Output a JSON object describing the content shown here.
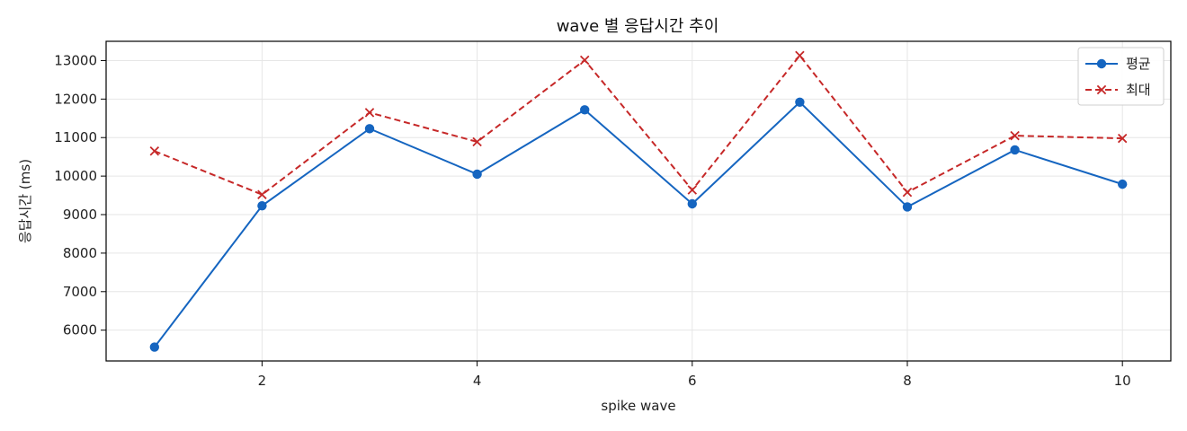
{
  "chart_data": {
    "type": "line",
    "title": "wave 별 응답시간 추이",
    "xlabel": "spike wave",
    "ylabel": "응답시간 (ms)",
    "x": [
      1,
      2,
      3,
      4,
      5,
      6,
      7,
      8,
      9,
      10
    ],
    "xlim": [
      0.55,
      10.45
    ],
    "ylim": [
      5200,
      13500
    ],
    "xticks": [
      2,
      4,
      6,
      8,
      10
    ],
    "yticks": [
      6000,
      7000,
      8000,
      9000,
      10000,
      11000,
      12000,
      13000
    ],
    "grid": true,
    "legend_position": "top-right",
    "series": [
      {
        "name": "평균",
        "color": "#1565c0",
        "line_style": "solid",
        "marker": "circle",
        "values": [
          5560,
          9230,
          11230,
          10050,
          11720,
          9280,
          11920,
          9200,
          10680,
          9790
        ]
      },
      {
        "name": "최대",
        "color": "#c62828",
        "line_style": "dashed",
        "marker": "x",
        "values": [
          10650,
          9520,
          11650,
          10890,
          13010,
          9640,
          13130,
          9580,
          11050,
          10980
        ]
      }
    ]
  }
}
